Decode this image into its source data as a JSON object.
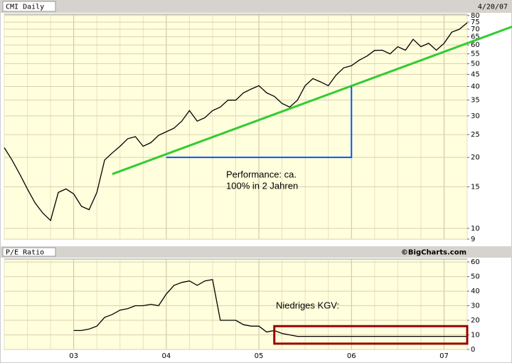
{
  "chart_data": [
    {
      "type": "line",
      "title": "CMI Daily",
      "date": "4/20/07",
      "log_scale": true,
      "grid": true,
      "ylim": [
        9,
        81
      ],
      "yticks": [
        9,
        10,
        15,
        20,
        25,
        30,
        35,
        40,
        45,
        50,
        55,
        60,
        65,
        70,
        75,
        80
      ],
      "series": [
        {
          "name": "CMI",
          "color": "#000000",
          "values": [
            22,
            19.5,
            17,
            14.7,
            12.8,
            11.6,
            10.8,
            14.2,
            14.7,
            14,
            12.4,
            12,
            14.2,
            19.5,
            20.9,
            22.3,
            24,
            24.5,
            22.3,
            23.1,
            24.8,
            25.7,
            26.6,
            28.5,
            31.6,
            28.5,
            29.5,
            31.6,
            32.7,
            35,
            35,
            37.6,
            39,
            40.3,
            37.6,
            36.3,
            33.9,
            32.7,
            35,
            40.3,
            43.2,
            41.8,
            40.3,
            44.7,
            48,
            49,
            51.7,
            53.8,
            56.9,
            57,
            55,
            59,
            57,
            63.4,
            59,
            61,
            57,
            61,
            68,
            70,
            74.5
          ]
        }
      ],
      "trendline": {
        "color": "#33cc33",
        "start_index": 14,
        "start_value": 17,
        "end_index": 60,
        "end_value": 61
      },
      "performance_marker": {
        "color": "#0055ff",
        "start_index": 21,
        "start_value": 20,
        "end_index": 45,
        "end_value": 40
      },
      "performance_note": [
        "Performance: ca.",
        "100% in 2 Jahren"
      ]
    },
    {
      "type": "line",
      "title": "P/E Ratio",
      "source": "©BigCharts.com",
      "grid": true,
      "ylim": [
        0,
        62
      ],
      "yticks": [
        0,
        10,
        20,
        30,
        40,
        50,
        60
      ],
      "categories": [
        null,
        null,
        null,
        null,
        null,
        null,
        null,
        null,
        null,
        "03",
        null,
        null,
        null,
        null,
        null,
        null,
        null,
        null,
        null,
        null,
        null,
        "04",
        null,
        null,
        null,
        null,
        null,
        null,
        null,
        null,
        null,
        null,
        null,
        "05",
        null,
        null,
        null,
        null,
        null,
        null,
        null,
        null,
        null,
        null,
        null,
        "06",
        null,
        null,
        null,
        null,
        null,
        null,
        null,
        null,
        null,
        null,
        null,
        "07",
        null,
        null,
        null
      ],
      "series": [
        {
          "name": "P/E",
          "color": "#000000",
          "values": [
            null,
            null,
            null,
            null,
            null,
            null,
            null,
            null,
            null,
            13,
            13,
            14,
            16,
            22,
            24,
            27,
            28,
            30,
            30,
            31,
            30,
            38,
            44,
            46,
            47,
            44,
            47,
            48,
            20,
            20,
            20,
            17,
            16,
            16,
            12,
            13,
            11,
            10,
            9,
            9,
            9,
            9,
            9,
            9,
            9,
            9,
            9,
            9,
            9,
            9,
            9,
            9,
            9,
            9,
            9,
            9,
            9,
            9,
            9,
            9,
            9
          ]
        }
      ],
      "highlight": {
        "color": "#990000",
        "start_index": 35,
        "end_index": 60,
        "low": 4,
        "high": 16
      },
      "note": "Niedriges KGV:"
    }
  ]
}
